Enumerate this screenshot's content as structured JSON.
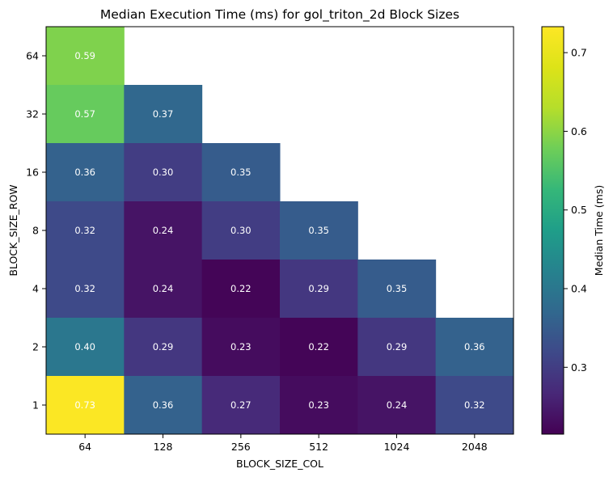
{
  "chart_data": {
    "type": "heatmap",
    "title": "Median Execution Time (ms) for gol_triton_2d Block Sizes",
    "xlabel": "BLOCK_SIZE_COL",
    "ylabel": "BLOCK_SIZE_ROW",
    "x_categories": [
      "64",
      "128",
      "256",
      "512",
      "1024",
      "2048"
    ],
    "y_categories": [
      "64",
      "32",
      "16",
      "8",
      "4",
      "2",
      "1"
    ],
    "values": [
      [
        0.59,
        null,
        null,
        null,
        null,
        null
      ],
      [
        0.57,
        0.37,
        null,
        null,
        null,
        null
      ],
      [
        0.36,
        0.3,
        0.35,
        null,
        null,
        null
      ],
      [
        0.32,
        0.24,
        0.3,
        0.35,
        null,
        null
      ],
      [
        0.32,
        0.24,
        0.22,
        0.29,
        0.35,
        null
      ],
      [
        0.4,
        0.29,
        0.23,
        0.22,
        0.29,
        0.36
      ],
      [
        0.73,
        0.36,
        0.27,
        0.23,
        0.24,
        0.32
      ]
    ],
    "value_labels": [
      [
        "0.59",
        null,
        null,
        null,
        null,
        null
      ],
      [
        "0.57",
        "0.37",
        null,
        null,
        null,
        null
      ],
      [
        "0.36",
        "0.30",
        "0.35",
        null,
        null,
        null
      ],
      [
        "0.32",
        "0.24",
        "0.30",
        "0.35",
        null,
        null
      ],
      [
        "0.32",
        "0.24",
        "0.22",
        "0.29",
        "0.35",
        null
      ],
      [
        "0.40",
        "0.29",
        "0.23",
        "0.22",
        "0.29",
        "0.36"
      ],
      [
        "0.73",
        "0.36",
        "0.27",
        "0.23",
        "0.24",
        "0.32"
      ]
    ],
    "colormap": "viridis",
    "colorbar": {
      "label": "Median Time (ms)",
      "range": [
        0.215,
        0.733
      ],
      "ticks": [
        0.3,
        0.4,
        0.5,
        0.6,
        0.7
      ],
      "tick_labels": [
        "0.3",
        "0.4",
        "0.5",
        "0.6",
        "0.7"
      ]
    },
    "grid": false
  }
}
